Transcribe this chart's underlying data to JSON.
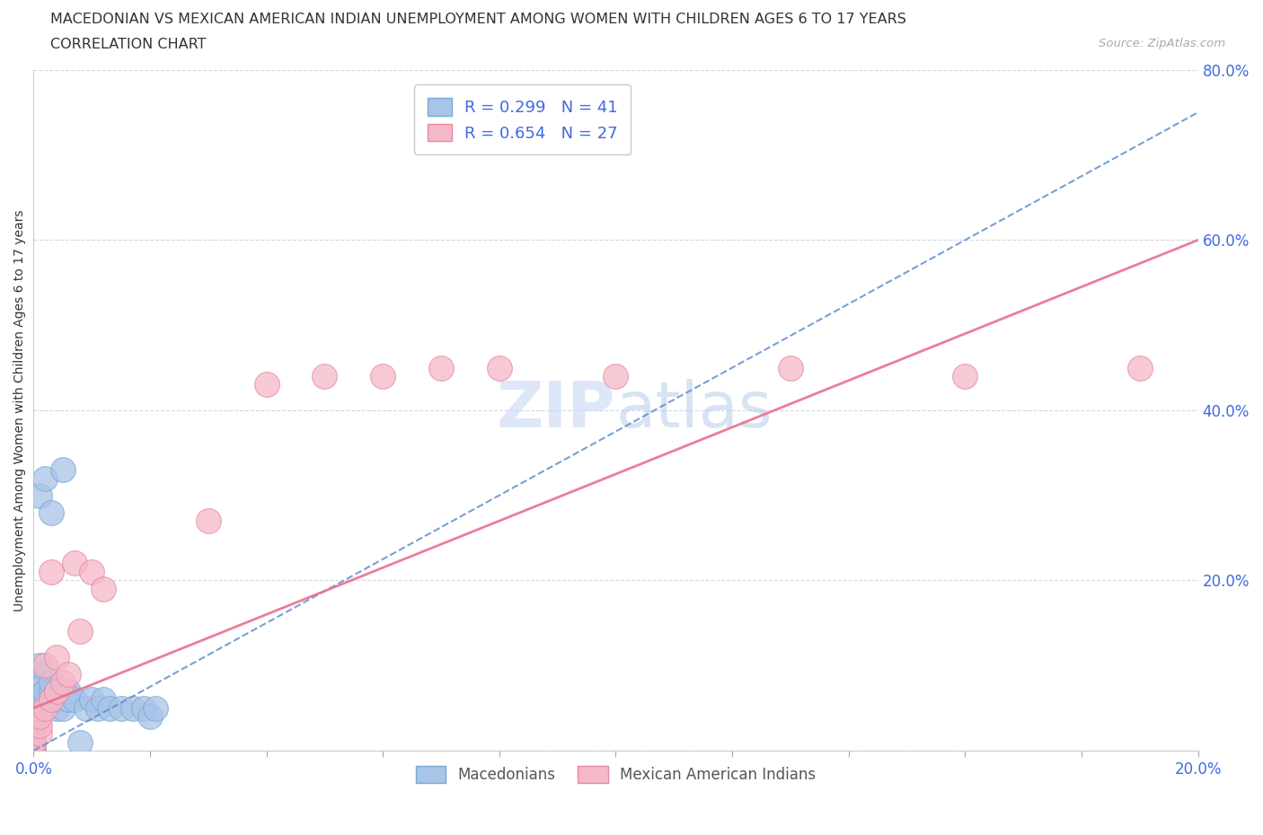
{
  "title": "MACEDONIAN VS MEXICAN AMERICAN INDIAN UNEMPLOYMENT AMONG WOMEN WITH CHILDREN AGES 6 TO 17 YEARS",
  "subtitle": "CORRELATION CHART",
  "source": "Source: ZipAtlas.com",
  "ylabel": "Unemployment Among Women with Children Ages 6 to 17 years",
  "xlim": [
    0.0,
    0.2
  ],
  "ylim": [
    0.0,
    0.8
  ],
  "xtick_labels": [
    "0.0%",
    "",
    "",
    "",
    "",
    "",
    "",
    "",
    "",
    "",
    "20.0%"
  ],
  "xtick_vals": [
    0.0,
    0.02,
    0.04,
    0.06,
    0.08,
    0.1,
    0.12,
    0.14,
    0.16,
    0.18,
    0.2
  ],
  "ytick_labels": [
    "80.0%",
    "60.0%",
    "40.0%",
    "20.0%"
  ],
  "ytick_vals": [
    0.8,
    0.6,
    0.4,
    0.2
  ],
  "macedonian_R": 0.299,
  "macedonian_N": 41,
  "mexican_R": 0.654,
  "mexican_N": 27,
  "macedonian_color": "#a8c4e8",
  "macedonian_edge": "#7aaad4",
  "mexican_color": "#f5b8c8",
  "mexican_edge": "#e888a0",
  "macedonian_line_color": "#6090d0",
  "mexican_line_color": "#e87090",
  "macedonian_line_style": "--",
  "mexican_line_style": "-",
  "grid_color": "#d0d8e8",
  "grid_style": "--",
  "watermark_color": "#c8d8f0",
  "tick_color": "#4169e1",
  "mac_line_x0": 0.0,
  "mac_line_y0": 0.0,
  "mac_line_x1": 0.2,
  "mac_line_y1": 0.75,
  "mex_line_x0": 0.0,
  "mex_line_y0": 0.05,
  "mex_line_x1": 0.2,
  "mex_line_y1": 0.6,
  "mac_points_x": [
    0.0,
    0.0,
    0.0,
    0.0,
    0.0,
    0.0,
    0.0,
    0.0,
    0.0,
    0.001,
    0.001,
    0.001,
    0.001,
    0.001,
    0.002,
    0.002,
    0.002,
    0.002,
    0.003,
    0.003,
    0.003,
    0.003,
    0.004,
    0.004,
    0.004,
    0.005,
    0.005,
    0.006,
    0.006,
    0.007,
    0.008,
    0.009,
    0.01,
    0.011,
    0.012,
    0.013,
    0.015,
    0.017,
    0.019,
    0.02,
    0.021
  ],
  "mac_points_y": [
    0.0,
    0.0,
    0.01,
    0.01,
    0.02,
    0.02,
    0.03,
    0.04,
    0.05,
    0.06,
    0.08,
    0.09,
    0.1,
    0.3,
    0.05,
    0.06,
    0.07,
    0.32,
    0.06,
    0.07,
    0.08,
    0.28,
    0.05,
    0.06,
    0.07,
    0.05,
    0.33,
    0.06,
    0.07,
    0.06,
    0.01,
    0.05,
    0.06,
    0.05,
    0.06,
    0.05,
    0.05,
    0.05,
    0.05,
    0.04,
    0.05
  ],
  "mex_points_x": [
    0.0,
    0.0,
    0.001,
    0.001,
    0.001,
    0.002,
    0.002,
    0.003,
    0.003,
    0.004,
    0.004,
    0.005,
    0.006,
    0.007,
    0.008,
    0.01,
    0.012,
    0.03,
    0.04,
    0.05,
    0.06,
    0.07,
    0.08,
    0.1,
    0.13,
    0.16,
    0.19
  ],
  "mex_points_y": [
    0.0,
    0.01,
    0.02,
    0.03,
    0.04,
    0.05,
    0.1,
    0.06,
    0.21,
    0.07,
    0.11,
    0.08,
    0.09,
    0.22,
    0.14,
    0.21,
    0.19,
    0.27,
    0.43,
    0.44,
    0.44,
    0.45,
    0.45,
    0.44,
    0.45,
    0.44,
    0.45
  ]
}
